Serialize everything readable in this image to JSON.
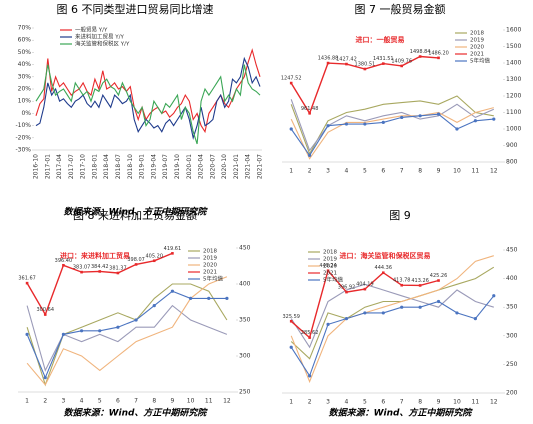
{
  "chart_data": [
    {
      "type": "line",
      "title": "图 6   不同类型进口贸易同比增速",
      "source": "数据来源：Wind、方正中期研究院",
      "categories": [
        "2016-10",
        null,
        null,
        "2017-01",
        null,
        null,
        "2017-04",
        null,
        null,
        "2017-07",
        null,
        null,
        "2017-10",
        null,
        null,
        "2018-01",
        null,
        null,
        "2018-04",
        null,
        null,
        "2018-07",
        null,
        null,
        "2018-10",
        null,
        null,
        "2019-01",
        null,
        null,
        "2019-04",
        null,
        null,
        "2019-07",
        null,
        null,
        "2019-10",
        null,
        null,
        "2020-01",
        null,
        null,
        "2020-04",
        null,
        null,
        "2020-07",
        null,
        null,
        "2020-10",
        null,
        null,
        "2021-01",
        null,
        null,
        "2021-04",
        null,
        null,
        "2021-07"
      ],
      "ylim": [
        -30,
        70
      ],
      "yticks": [
        {
          "value": -30,
          "label": "-30%"
        },
        {
          "value": -20,
          "label": "-20%"
        },
        {
          "value": -10,
          "label": "-10%"
        },
        {
          "value": 0,
          "label": "0%"
        },
        {
          "value": 10,
          "label": "10%"
        },
        {
          "value": 20,
          "label": "20%"
        },
        {
          "value": 30,
          "label": "30%"
        },
        {
          "value": 40,
          "label": "40%"
        },
        {
          "value": 50,
          "label": "50%"
        },
        {
          "value": 60,
          "label": "60%"
        },
        {
          "value": 70,
          "label": "70%"
        }
      ],
      "legend": "upper left",
      "series": [
        {
          "name": "一般贸易 Y/Y",
          "color": "#e8292b",
          "values": [
            -2,
            8,
            12,
            45,
            18,
            30,
            22,
            25,
            20,
            15,
            18,
            20,
            25,
            18,
            15,
            28,
            20,
            35,
            20,
            22,
            25,
            20,
            22,
            18,
            22,
            5,
            -5,
            5,
            -5,
            0,
            3,
            5,
            0,
            2,
            -3,
            0,
            5,
            8,
            15,
            10,
            -5,
            0,
            -10,
            -15,
            0,
            5,
            10,
            15,
            8,
            5,
            12,
            20,
            25,
            30,
            42,
            52,
            40,
            30
          ]
        },
        {
          "name": "来进料加工贸易 Y/Y",
          "color": "#1f3b8c",
          "values": [
            -10,
            -8,
            5,
            25,
            15,
            20,
            10,
            12,
            8,
            5,
            10,
            12,
            15,
            8,
            5,
            10,
            5,
            15,
            10,
            5,
            15,
            12,
            8,
            10,
            15,
            -5,
            -15,
            -10,
            -5,
            -8,
            -12,
            -10,
            -15,
            -8,
            -5,
            -10,
            -5,
            0,
            5,
            -5,
            -20,
            -10,
            5,
            -10,
            -8,
            -5,
            10,
            15,
            5,
            10,
            28,
            25,
            30,
            45,
            38,
            25,
            30,
            22
          ]
        },
        {
          "name": "海关监管和保税区 Y/Y",
          "color": "#3aa655",
          "values": [
            10,
            15,
            20,
            40,
            25,
            15,
            18,
            20,
            15,
            10,
            25,
            20,
            15,
            18,
            10,
            20,
            18,
            25,
            28,
            22,
            20,
            15,
            25,
            18,
            10,
            5,
            0,
            5,
            -10,
            -5,
            10,
            5,
            0,
            8,
            5,
            10,
            15,
            -5,
            5,
            0,
            -15,
            -25,
            10,
            20,
            15,
            20,
            25,
            30,
            10,
            15,
            10,
            20,
            15,
            40,
            25,
            20,
            18,
            15
          ]
        }
      ]
    },
    {
      "type": "line",
      "title": "图 7   一般贸易金额",
      "annotation": "进口：一般贸易",
      "categories": [
        1,
        2,
        3,
        4,
        5,
        6,
        7,
        8,
        9,
        10,
        11,
        12
      ],
      "ylim": [
        500,
        1750
      ],
      "y2lim": [
        800,
        1600
      ],
      "y2ticks": [
        800,
        900,
        1000,
        1100,
        1200,
        1300,
        1400,
        1500,
        1600
      ],
      "legend": "upper right",
      "series": [
        {
          "name": "2018",
          "color": "#a8a860",
          "axis": "y2",
          "values": [
            1150,
            850,
            1050,
            1100,
            1120,
            1150,
            1160,
            1170,
            1150,
            1200,
            1100,
            1080
          ]
        },
        {
          "name": "2019",
          "color": "#9a9ab8",
          "axis": "y2",
          "values": [
            1180,
            870,
            1020,
            1080,
            1050,
            1080,
            1100,
            1060,
            1080,
            1150,
            1070,
            1120
          ]
        },
        {
          "name": "2020",
          "color": "#f0b47d",
          "axis": "y2",
          "values": [
            1060,
            820,
            980,
            1040,
            1040,
            1060,
            1080,
            1080,
            1100,
            1040,
            1100,
            1130
          ]
        },
        {
          "name": "2021",
          "color": "#e8292b",
          "marker": "square",
          "values": [
            1247.52,
            961.48,
            1436.88,
            1427.42,
            1380.51,
            1431.51,
            1409.76,
            1498.84,
            1486.2,
            null,
            null,
            null
          ],
          "value_labels": [
            "1247.52",
            "961.48",
            "1436.88",
            "1427.42",
            "1380.51",
            "1431.51",
            "1409.76",
            "1498.84",
            "1486.20",
            null,
            null,
            null
          ]
        },
        {
          "name": "5年均值",
          "color": "#4b74c0",
          "axis": "y2",
          "marker": "circle",
          "values": [
            1000,
            840,
            1020,
            1030,
            1030,
            1040,
            1070,
            1080,
            1090,
            1000,
            1050,
            1060
          ]
        }
      ]
    },
    {
      "type": "line",
      "title": "图 8   来进料加工贸易金额",
      "annotation": "进口：来进料加工贸易",
      "source": "数据来源：Wind、方正中期研究院",
      "categories": [
        1,
        2,
        3,
        4,
        5,
        6,
        7,
        8,
        9,
        10,
        11,
        12
      ],
      "ylim": [
        150,
        430
      ],
      "y2lim": [
        250,
        450
      ],
      "y2ticks": [
        250,
        300,
        350,
        400,
        450
      ],
      "legend": "upper right",
      "series": [
        {
          "name": "2018",
          "color": "#a8a860",
          "axis": "y2",
          "values": [
            340,
            260,
            330,
            340,
            350,
            360,
            350,
            380,
            400,
            400,
            390,
            350
          ]
        },
        {
          "name": "2019",
          "color": "#9a9ab8",
          "axis": "y2",
          "values": [
            370,
            280,
            330,
            320,
            330,
            320,
            340,
            340,
            370,
            350,
            340,
            330
          ]
        },
        {
          "name": "2020",
          "color": "#f0b47d",
          "axis": "y2",
          "values": [
            290,
            260,
            310,
            300,
            280,
            300,
            320,
            330,
            340,
            380,
            400,
            410
          ]
        },
        {
          "name": "2021",
          "color": "#e8292b",
          "marker": "square",
          "values": [
            361.67,
            300.64,
            396.4,
            383.07,
            384.42,
            381.37,
            398.07,
            405.2,
            419.61,
            null,
            null,
            null
          ],
          "value_labels": [
            "361.67",
            "300.64",
            "396.40",
            "383.07",
            "384.42",
            "381.37",
            "398.07",
            "405.20",
            "419.61",
            null,
            null,
            null
          ]
        },
        {
          "name": "5年均值",
          "color": "#4b74c0",
          "axis": "y2",
          "marker": "circle",
          "values": [
            330,
            270,
            330,
            335,
            335,
            340,
            350,
            370,
            390,
            380,
            380,
            380
          ]
        }
      ]
    },
    {
      "type": "line",
      "title": "图 9",
      "annotation": "进口：海关监管和保税区贸易",
      "source": "数据来源：Wind、方正中期研究院",
      "categories": [
        1,
        2,
        3,
        4,
        5,
        6,
        7,
        8,
        9,
        10,
        11,
        12
      ],
      "ylim": [
        150,
        500
      ],
      "y2lim": [
        200,
        450
      ],
      "y2ticks": [
        200,
        250,
        300,
        350,
        400,
        450
      ],
      "legend": "upper left",
      "series": [
        {
          "name": "2018",
          "color": "#a8a860",
          "axis": "y2",
          "values": [
            290,
            260,
            340,
            330,
            350,
            360,
            360,
            370,
            380,
            390,
            400,
            420
          ]
        },
        {
          "name": "2019",
          "color": "#9a9ab8",
          "axis": "y2",
          "values": [
            330,
            280,
            360,
            380,
            390,
            380,
            370,
            360,
            350,
            380,
            360,
            350
          ]
        },
        {
          "name": "2020",
          "color": "#f0b47d",
          "axis": "y2",
          "values": [
            300,
            220,
            300,
            330,
            340,
            350,
            360,
            370,
            380,
            400,
            430,
            440
          ]
        },
        {
          "name": "2021",
          "color": "#e8292b",
          "marker": "square",
          "values": [
            325.59,
            285.62,
            449.24,
            396.92,
            404.19,
            444.36,
            413.78,
            413.26,
            425.26,
            null,
            null,
            null
          ],
          "value_labels": [
            "325.59",
            "285.62",
            "449.24",
            "396.92",
            "404.19",
            "444.36",
            "413.78",
            "413.26",
            "425.26",
            null,
            null,
            null
          ]
        },
        {
          "name": "5年均值",
          "color": "#4b74c0",
          "axis": "y2",
          "marker": "circle",
          "values": [
            280,
            230,
            320,
            330,
            340,
            340,
            350,
            350,
            360,
            340,
            330,
            370
          ]
        }
      ]
    }
  ]
}
